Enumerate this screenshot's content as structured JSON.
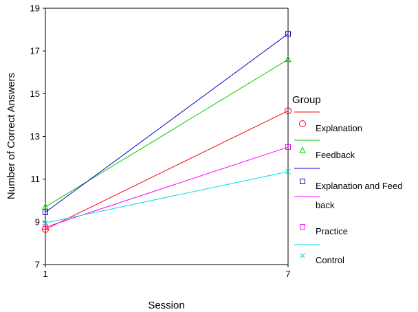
{
  "chart_data": {
    "type": "line",
    "xlabel": "Session",
    "ylabel": "Number of Correct Answers",
    "x": [
      1,
      7
    ],
    "xticks": [
      "1",
      "7"
    ],
    "ylim": [
      7,
      19
    ],
    "yticks": [
      7,
      9,
      11,
      13,
      15,
      17,
      19
    ],
    "grid": false,
    "legend_title": "Group",
    "legend_position": "right",
    "series": [
      {
        "name": "Explanation",
        "values": [
          8.65,
          14.2
        ],
        "color": "#ff0000",
        "marker": "circle"
      },
      {
        "name": "Feedback",
        "values": [
          9.7,
          16.6
        ],
        "color": "#00cc00",
        "marker": "triangle"
      },
      {
        "name": "Explanation and Feedback",
        "label_lines": [
          "Explanation and Feed",
          "back"
        ],
        "values": [
          9.45,
          17.8
        ],
        "color": "#0000cc",
        "marker": "square"
      },
      {
        "name": "Practice",
        "values": [
          8.75,
          12.5
        ],
        "color": "#ff00ff",
        "marker": "square"
      },
      {
        "name": "Control",
        "values": [
          8.95,
          11.35
        ],
        "color": "#00dddd",
        "marker": "x"
      }
    ]
  }
}
